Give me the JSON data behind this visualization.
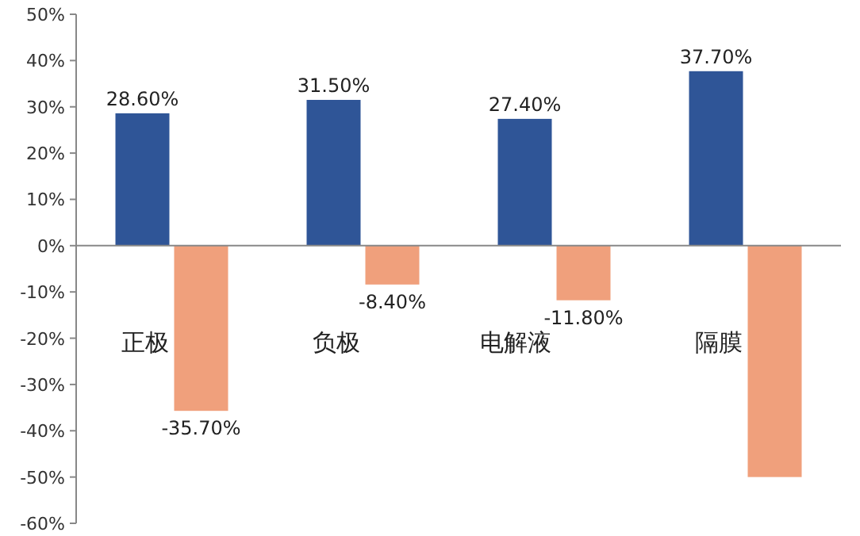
{
  "chart_data": {
    "type": "bar",
    "categories": [
      "正极",
      "负极",
      "电解液",
      "隔膜"
    ],
    "series": [
      {
        "color": "#2f5597",
        "values": [
          28.6,
          31.5,
          27.4,
          37.7
        ],
        "value_labels": [
          "28.60%",
          "31.50%",
          "27.40%",
          "37.70%"
        ]
      },
      {
        "color": "#f0a07c",
        "values": [
          -35.7,
          -8.4,
          -11.8,
          -50
        ],
        "value_labels": [
          "-35.70%",
          "-8.40%",
          "-11.80%",
          null
        ]
      }
    ],
    "ylim": [
      -60,
      50
    ],
    "yticks": [
      {
        "value": 50,
        "label": "50%"
      },
      {
        "value": 40,
        "label": "40%"
      },
      {
        "value": 30,
        "label": "30%"
      },
      {
        "value": 20,
        "label": "20%"
      },
      {
        "value": 10,
        "label": "10%"
      },
      {
        "value": 0,
        "label": "0%"
      },
      {
        "value": -10,
        "label": "-10%"
      },
      {
        "value": -20,
        "label": "-20%"
      },
      {
        "value": -30,
        "label": "-30%"
      },
      {
        "value": -40,
        "label": "-40%"
      },
      {
        "value": -50,
        "label": "-50%"
      },
      {
        "value": -60,
        "label": "-60%"
      }
    ],
    "ylabel": null
  }
}
